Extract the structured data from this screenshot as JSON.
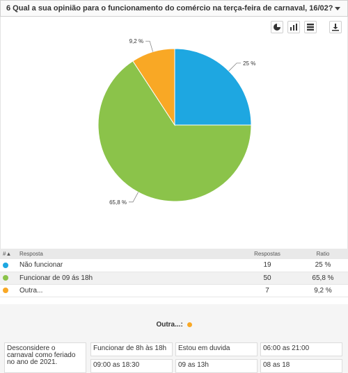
{
  "question": {
    "title": "6 Qual a sua opinião para o funcionamento do comércio na terça-feira de carnaval, 16/02?"
  },
  "toolbar": {
    "icons": [
      "pie-chart-icon",
      "bar-chart-icon",
      "table-icon",
      "download-icon"
    ]
  },
  "chart_data": {
    "type": "pie",
    "slices": [
      {
        "label": "Não funcionar",
        "value": 25,
        "display": "25 %",
        "color": "#1ea7e1"
      },
      {
        "label": "Funcionar de 09 ás 18h",
        "value": 65.8,
        "display": "65,8 %",
        "color": "#8bc34a"
      },
      {
        "label": "Outra...",
        "value": 9.2,
        "display": "9,2 %",
        "color": "#f9a825"
      }
    ]
  },
  "table": {
    "headers": {
      "index": "#▲",
      "answer": "Resposta",
      "responses": "Respostas",
      "ratio": "Ratio"
    },
    "rows": [
      {
        "label": "Não funcionar",
        "responses": "19",
        "ratio": "25 %",
        "color": "#1ea7e1"
      },
      {
        "label": "Funcionar de 09 ás 18h",
        "responses": "50",
        "ratio": "65,8 %",
        "color": "#8bc34a"
      },
      {
        "label": "Outra...",
        "responses": "7",
        "ratio": "9,2 %",
        "color": "#f9a825"
      }
    ]
  },
  "other": {
    "title": "Outra...:",
    "color": "#f9a825",
    "answers": [
      "Desconsidere o carnaval como feriado no ano de 2021.",
      "Funcionar de 8h às 18h",
      "Estou em duvida",
      "06:00 as 21:00",
      "09:00 as 18:30",
      "09 as 13h",
      "08 as 18"
    ]
  }
}
